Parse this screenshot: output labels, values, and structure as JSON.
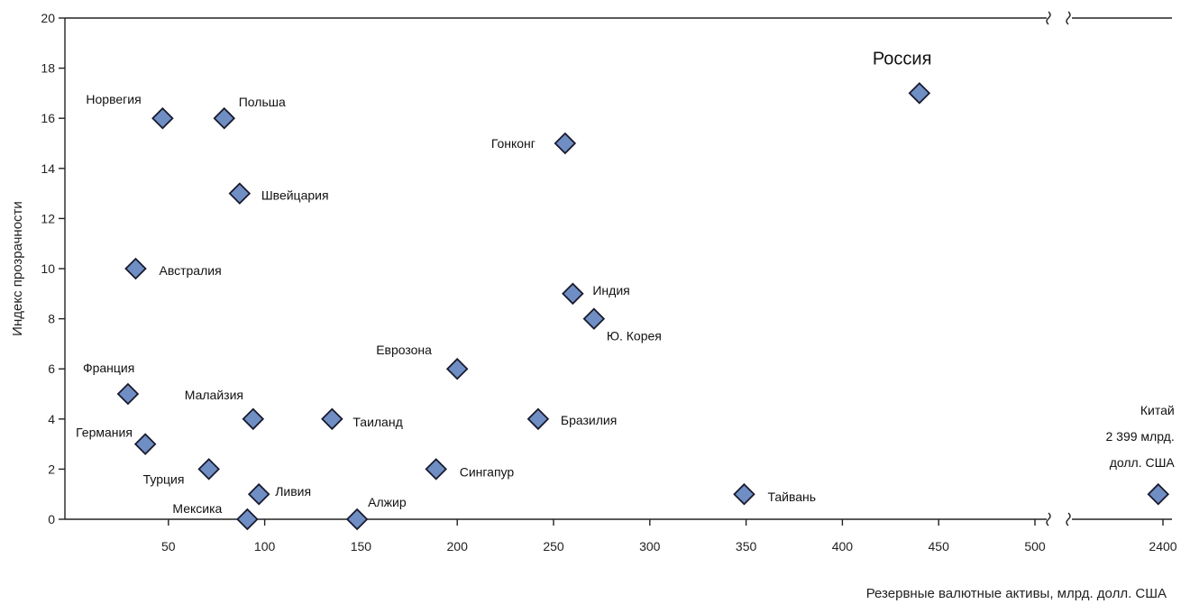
{
  "chart_data": {
    "type": "scatter",
    "xlabel": "Резервные валютные активы, млрд. долл. США",
    "ylabel": "Индекс прозрачности",
    "ylim": [
      0,
      20
    ],
    "yticks": [
      "0",
      "2",
      "4",
      "6",
      "8",
      "10",
      "12",
      "14",
      "16",
      "18",
      "20"
    ],
    "x_segments": [
      {
        "xlim": [
          0,
          510
        ],
        "ticks": [
          "50",
          "100",
          "150",
          "200",
          "250",
          "300",
          "350",
          "400",
          "450",
          "500"
        ]
      },
      {
        "xlim": [
          2380,
          2405
        ],
        "ticks": [
          "2400"
        ]
      }
    ],
    "axis_break": true,
    "grid": false,
    "points": [
      {
        "label": "Россия",
        "x": 440,
        "y": 17
      },
      {
        "label": "Норвегия",
        "x": 47,
        "y": 16
      },
      {
        "label": "Польша",
        "x": 79,
        "y": 16
      },
      {
        "label": "Гонконг",
        "x": 256,
        "y": 15
      },
      {
        "label": "Швейцария",
        "x": 87,
        "y": 13
      },
      {
        "label": "Австралия",
        "x": 33,
        "y": 10
      },
      {
        "label": "Индия",
        "x": 260,
        "y": 9
      },
      {
        "label": "Ю. Корея",
        "x": 271,
        "y": 8
      },
      {
        "label": "Еврозона",
        "x": 200,
        "y": 6
      },
      {
        "label": "Франция",
        "x": 29,
        "y": 5
      },
      {
        "label": "Малайзия",
        "x": 94,
        "y": 4
      },
      {
        "label": "Таиланд",
        "x": 135,
        "y": 4
      },
      {
        "label": "Бразилия",
        "x": 242,
        "y": 4
      },
      {
        "label": "Германия",
        "x": 38,
        "y": 3
      },
      {
        "label": "Турция",
        "x": 71,
        "y": 2
      },
      {
        "label": "Сингапур",
        "x": 189,
        "y": 2
      },
      {
        "label": "Ливия",
        "x": 97,
        "y": 1
      },
      {
        "label": "Тайвань",
        "x": 349,
        "y": 1
      },
      {
        "label": "Мексика",
        "x": 91,
        "y": 0
      },
      {
        "label": "Алжир",
        "x": 148,
        "y": 0
      },
      {
        "label": "Китай",
        "x": 2399,
        "y": 1,
        "note_lines": [
          "2 399 млрд.",
          "долл. США"
        ]
      }
    ]
  }
}
